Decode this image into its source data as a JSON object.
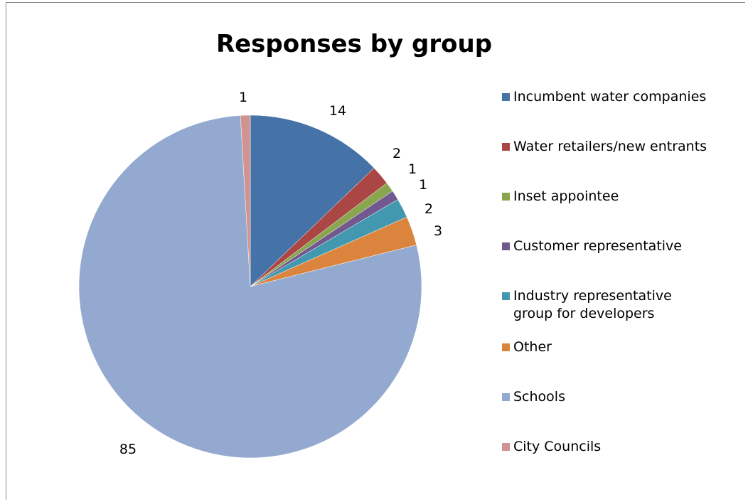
{
  "chart_data": {
    "type": "pie",
    "title": "Responses by group",
    "categories": [
      "Incumbent water companies",
      "Water retailers/new entrants",
      "Inset appointee",
      "Customer representative",
      "Industry representative group for developers",
      "Other",
      "Schools",
      "City Councils"
    ],
    "values": [
      14,
      2,
      1,
      1,
      2,
      3,
      85,
      1
    ],
    "data_labels": [
      "14",
      "2",
      "1",
      "1",
      "2",
      "3",
      "85",
      "1"
    ],
    "colors": [
      "#4572a7",
      "#aa4643",
      "#89a54e",
      "#71588f",
      "#4198af",
      "#db843d",
      "#93a9cf",
      "#d19392"
    ],
    "legend_position": "right",
    "start_angle_deg": 0,
    "direction": "clockwise"
  },
  "legend": {
    "items": [
      {
        "label": "Incumbent water companies",
        "color": "#4572a7"
      },
      {
        "label": "Water retailers/new entrants",
        "color": "#aa4643"
      },
      {
        "label": "Inset appointee",
        "color": "#89a54e"
      },
      {
        "label": "Customer representative",
        "color": "#71588f"
      },
      {
        "label": "Industry representative group for developers",
        "color": "#4198af"
      },
      {
        "label": "Other",
        "color": "#db843d"
      },
      {
        "label": "Schools",
        "color": "#93a9cf"
      },
      {
        "label": "City Councils",
        "color": "#d19392"
      }
    ]
  }
}
